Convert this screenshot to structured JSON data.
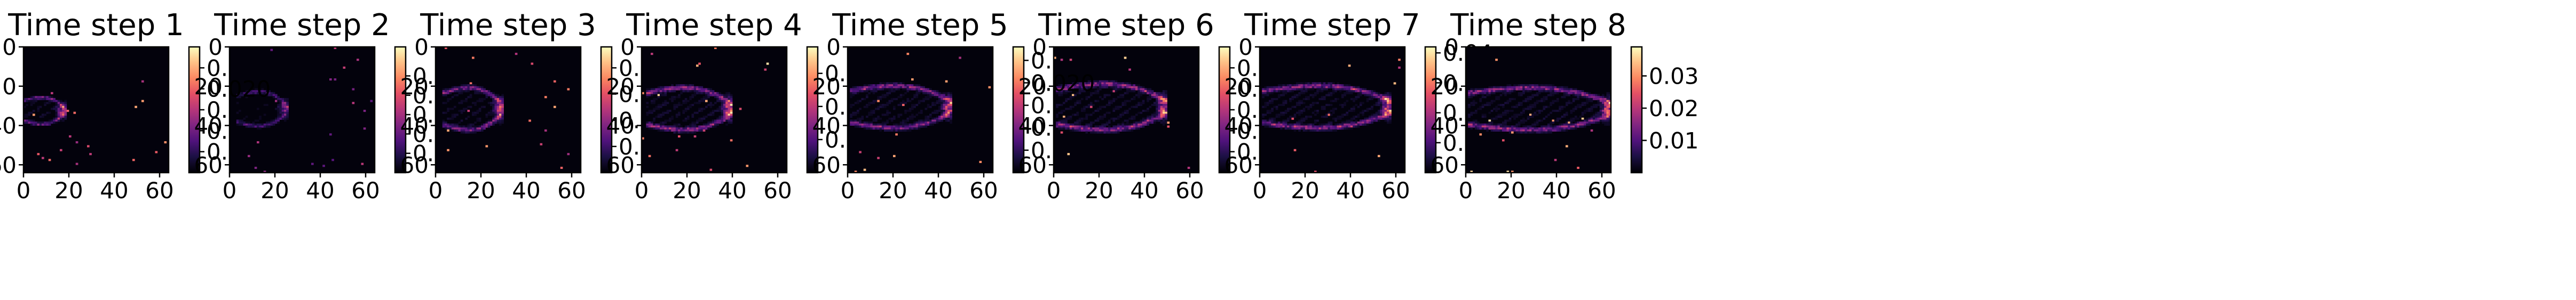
{
  "chart_data": [
    {
      "type": "heatmap",
      "title": "Time step 1",
      "xticks": [
        "0",
        "20",
        "40",
        "60"
      ],
      "yticks": [
        "0",
        "20",
        "40",
        "60"
      ],
      "xlim": [
        0,
        64
      ],
      "ylim": [
        64,
        0
      ],
      "colormap": "magma",
      "colorbar": {
        "min": 0,
        "max": 0.03,
        "ticks": [
          "0.005",
          "0.010",
          "0.015",
          "0.020",
          "0.025"
        ]
      },
      "front": {
        "x_min": 0,
        "x_max": 17,
        "y_center": 32,
        "half_height": 7,
        "peak": 0.025
      }
    },
    {
      "type": "heatmap",
      "title": "Time step 2",
      "xticks": [
        "0",
        "20",
        "40",
        "60"
      ],
      "yticks": [
        "0",
        "20",
        "40",
        "60"
      ],
      "xlim": [
        0,
        64
      ],
      "ylim": [
        64,
        0
      ],
      "colormap": "magma",
      "colorbar": {
        "min": 0,
        "max": 0.065,
        "ticks": [
          "0.01",
          "0.02",
          "0.03",
          "0.04",
          "0.05"
        ]
      },
      "front": {
        "x_min": 3,
        "x_max": 24,
        "y_center": 31,
        "half_height": 9,
        "peak": 0.035
      }
    },
    {
      "type": "heatmap",
      "title": "Time step 3",
      "xticks": [
        "0",
        "20",
        "40",
        "60"
      ],
      "yticks": [
        "0",
        "20",
        "40",
        "60"
      ],
      "xlim": [
        0,
        64
      ],
      "ylim": [
        64,
        0
      ],
      "colormap": "magma",
      "colorbar": {
        "min": 0,
        "max": 0.024,
        "ticks": [
          "0.005",
          "0.010",
          "0.015",
          "0.020"
        ]
      },
      "front": {
        "x_min": 3,
        "x_max": 28,
        "y_center": 31,
        "half_height": 11,
        "peak": 0.02
      }
    },
    {
      "type": "heatmap",
      "title": "Time step 4",
      "xticks": [
        "0",
        "20",
        "40",
        "60"
      ],
      "yticks": [
        "0",
        "20",
        "40",
        "60"
      ],
      "xlim": [
        0,
        64
      ],
      "ylim": [
        64,
        0
      ],
      "colormap": "magma",
      "colorbar": {
        "min": 0,
        "max": 0.019,
        "ticks": [
          "0.005",
          "0.010",
          "0.015"
        ]
      },
      "front": {
        "x_min": 2,
        "x_max": 38,
        "y_center": 31,
        "half_height": 11,
        "peak": 0.018
      }
    },
    {
      "type": "heatmap",
      "title": "Time step 5",
      "xticks": [
        "0",
        "20",
        "40",
        "60"
      ],
      "yticks": [
        "0",
        "20",
        "40",
        "60"
      ],
      "xlim": [
        0,
        64
      ],
      "ylim": [
        64,
        0
      ],
      "colormap": "magma",
      "colorbar": {
        "min": 0,
        "max": 0.028,
        "ticks": [
          "0.005",
          "0.010",
          "0.015",
          "0.020",
          "0.025"
        ]
      },
      "front": {
        "x_min": 1,
        "x_max": 44,
        "y_center": 30,
        "half_height": 11,
        "peak": 0.025
      }
    },
    {
      "type": "heatmap",
      "title": "Time step 6",
      "xticks": [
        "0",
        "20",
        "40",
        "60"
      ],
      "yticks": [
        "0",
        "20",
        "40",
        "60"
      ],
      "xlim": [
        0,
        64
      ],
      "ylim": [
        64,
        0
      ],
      "colormap": "magma",
      "colorbar": {
        "min": 0,
        "max": 0.03,
        "ticks": [
          "0.005",
          "0.010",
          "0.015",
          "0.020",
          "0.025"
        ]
      },
      "front": {
        "x_min": 1,
        "x_max": 48,
        "y_center": 30,
        "half_height": 12,
        "peak": 0.028
      }
    },
    {
      "type": "heatmap",
      "title": "Time step 7",
      "xticks": [
        "0",
        "20",
        "40",
        "60"
      ],
      "yticks": [
        "0",
        "20",
        "40",
        "60"
      ],
      "xlim": [
        0,
        64
      ],
      "ylim": [
        64,
        0
      ],
      "colormap": "magma",
      "colorbar": {
        "min": 0,
        "max": 0.042,
        "ticks": [
          "0.01",
          "0.02",
          "0.03",
          "0.04"
        ]
      },
      "front": {
        "x_min": 1,
        "x_max": 56,
        "y_center": 30,
        "half_height": 11,
        "peak": 0.04
      }
    },
    {
      "type": "heatmap",
      "title": "Time step 8",
      "xticks": [
        "0",
        "20",
        "40",
        "60"
      ],
      "yticks": [
        "0",
        "20",
        "40",
        "60"
      ],
      "xlim": [
        0,
        64
      ],
      "ylim": [
        64,
        0
      ],
      "colormap": "magma",
      "colorbar": {
        "min": 0,
        "max": 0.039,
        "ticks": [
          "0.01",
          "0.02",
          "0.03"
        ]
      },
      "front": {
        "x_min": 1,
        "x_max": 62,
        "y_center": 31,
        "half_height": 11,
        "peak": 0.037
      }
    }
  ],
  "overlap_labels": [
    {
      "panel": 0,
      "text": "0.020",
      "row": 2
    },
    {
      "panel": 4,
      "text": "0.020",
      "row": 2
    }
  ]
}
